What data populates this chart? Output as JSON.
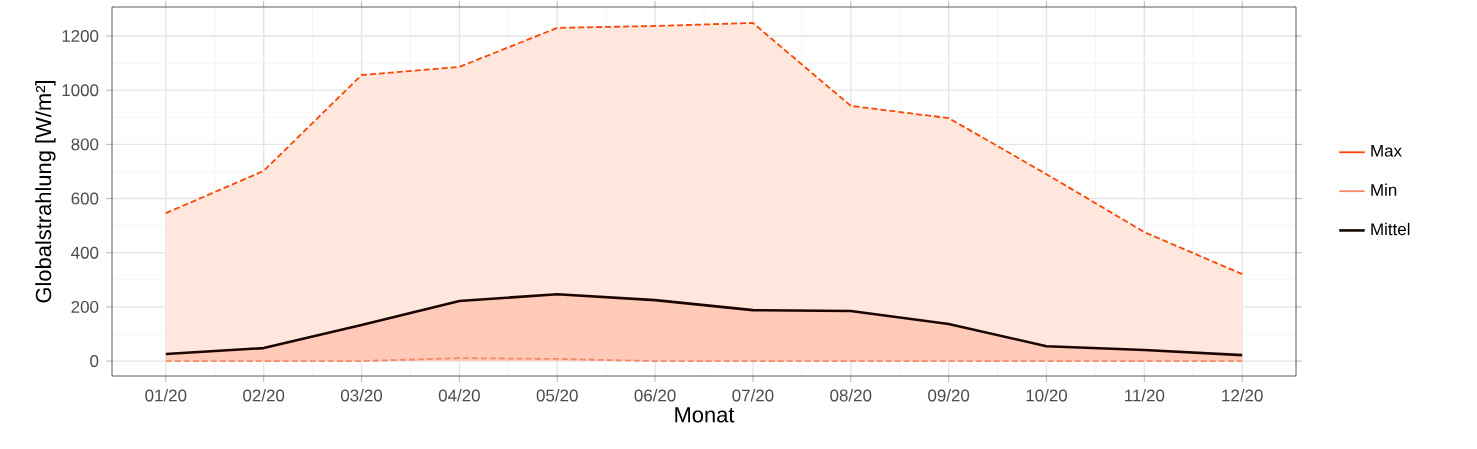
{
  "chart_data": {
    "type": "line",
    "xlabel": "Monat",
    "ylabel": "Globalstrahlung [W/m²]",
    "categories": [
      "01/20",
      "02/20",
      "03/20",
      "04/20",
      "05/20",
      "06/20",
      "07/20",
      "08/20",
      "09/20",
      "10/20",
      "11/20",
      "12/20"
    ],
    "series": [
      {
        "name": "Max",
        "type": "area",
        "color": "#ff4500",
        "line_style": "dashed",
        "values": [
          546,
          702,
          1056,
          1086,
          1230,
          1237,
          1248,
          942,
          897,
          690,
          476,
          321
        ]
      },
      {
        "name": "Min",
        "color": "#f4896b",
        "line_style": "dashed",
        "values": [
          0,
          0,
          0,
          11,
          8,
          0,
          0,
          0,
          0,
          0,
          0,
          0
        ]
      },
      {
        "name": "Mittel",
        "type": "area",
        "color": "#1a0500",
        "line_style": "solid",
        "values": [
          26,
          48,
          133,
          222,
          247,
          225,
          188,
          185,
          137,
          55,
          41,
          22
        ]
      }
    ],
    "ylim": [
      -55,
      1307
    ],
    "yticks": [
      0,
      200,
      400,
      600,
      800,
      1000,
      1200
    ],
    "grid": true,
    "legend": "right"
  }
}
